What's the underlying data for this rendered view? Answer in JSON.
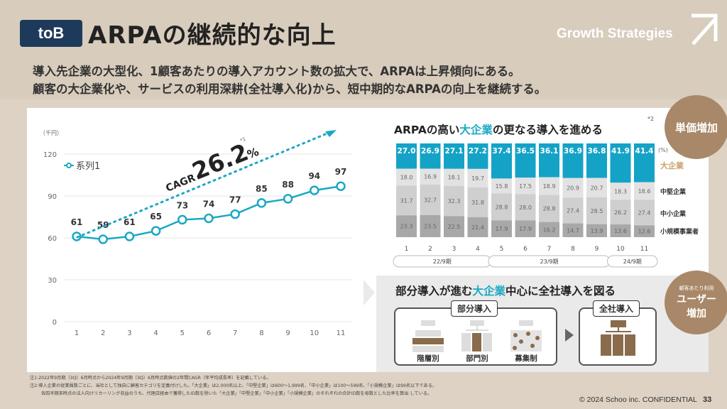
{
  "header": {
    "tag": "toB",
    "title": "ARPAの継続的な向上",
    "brand": "Growth Strategies",
    "lead_line1": "導入先企業の大型化、1顧客あたりの導入アカウント数の拡大で、ARPAは上昇傾向にある。",
    "lead_line2": "顧客の大企業化や、サービスの利用深耕(全社導入化)から、短中期的なARPAの向上を継続する。"
  },
  "chart_data": [
    {
      "type": "line",
      "unit_label": "（千円）",
      "legend": "系列1",
      "categories": [
        "1",
        "2",
        "3",
        "4",
        "5",
        "6",
        "7",
        "8",
        "9",
        "10",
        "11"
      ],
      "values": [
        61,
        59,
        61,
        65,
        73,
        74,
        77,
        85,
        88,
        94,
        97
      ],
      "y_ticks": [
        "0",
        "30",
        "60",
        "90",
        "120"
      ],
      "ylim": [
        0,
        120
      ],
      "cagr_label": "CAGR",
      "cagr_value": "26.2",
      "cagr_unit": "%",
      "cagr_note": "*1",
      "accent": "#1aa8c4"
    },
    {
      "type": "bar",
      "stacked": true,
      "unit_label": "(%)",
      "categories": [
        "1",
        "2",
        "3",
        "4",
        "5",
        "6",
        "7",
        "8",
        "9",
        "10",
        "11"
      ],
      "series": [
        {
          "name": "大企業",
          "values": [
            27.0,
            26.9,
            27.1,
            27.2,
            37.4,
            36.5,
            36.1,
            36.9,
            36.8,
            41.9,
            41.4
          ],
          "labels": [
            "27.0",
            "26.9",
            "27.1",
            "27.2",
            "37.4",
            "36.5",
            "36.1",
            "36.9",
            "36.8",
            "41.9",
            "41.4"
          ],
          "color": "#14a3c7"
        },
        {
          "name": "中堅企業",
          "values": [
            18.0,
            16.9,
            18.1,
            19.7,
            15.8,
            17.5,
            18.9,
            20.9,
            20.7,
            18.3,
            18.6
          ],
          "labels": [
            "18.0",
            "16.9",
            "18.1",
            "19.7",
            "15.8",
            "17.5",
            "18.9",
            "20.9",
            "20.7",
            "18.3",
            "18.6"
          ],
          "color": "#e2e2e2"
        },
        {
          "name": "中小企業",
          "values": [
            31.7,
            32.7,
            32.3,
            31.8,
            28.8,
            28.0,
            28.8,
            27.4,
            28.5,
            26.2,
            27.4
          ],
          "labels": [
            "31.7",
            "32.7",
            "32.3",
            "31.8",
            "28.8",
            "28.0",
            "28.8",
            "27.4",
            "28.5",
            "26.2",
            "27.4"
          ],
          "color": "#cfcfcf"
        },
        {
          "name": "小規模事業者",
          "values": [
            23.3,
            23.5,
            22.5,
            21.4,
            17.9,
            17.9,
            16.2,
            14.7,
            13.9,
            13.6,
            12.6
          ],
          "labels": [
            "23.3",
            "23.5",
            "22.5",
            "21.4",
            "17.9",
            "17.9",
            "16.2",
            "14.7",
            "13.9",
            "13.6",
            "12.6"
          ],
          "color": "#a8a8a8"
        }
      ],
      "periods": [
        "22/9期",
        "23/9期",
        "24/9期"
      ]
    }
  ],
  "right": {
    "section1_pre": "ARPAの高い",
    "section1_hl": "大企業",
    "section1_post": "の更なる導入を進める",
    "section1_note": "*2",
    "section2_pre": "部分導入が進む",
    "section2_hl": "大企業",
    "section2_post": "中心に全社導入を図る",
    "badge1": "単価増加",
    "badge2_small": "顧客あたり利用",
    "badge2_line1": "ユーザー",
    "badge2_line2": "増加",
    "group1_label": "部分導入",
    "group2_label": "全社導入",
    "icon1": "階層別",
    "icon2": "部門別",
    "icon3": "募集制"
  },
  "footer": {
    "note1": "注1:2022年9月期（3Q）6月時点から2024年9月期（3Q）6月時点数値の2年間CAGR（年平均成長率）を記載している。",
    "note2": "注2:導入企業の従業員数ごとに、当社として独自に顧客カテゴリを定義付けした。「大企業」は2,000名以上、「中堅企業」は600～1,999名、「中小企業」は100～599名、「小規模企業」は99名以下である。",
    "note3": "各四半期末時点の法人向けリカーリング収益のうち、代理店経由で獲得したID数を除いた「大企業」「中堅企業」「中小企業」「小規模企業」のそれぞれの合計ID数を母数とした比率を算出 している。",
    "copyright": "© 2024 Schoo inc. CONFIDENTIAL",
    "page": "33"
  }
}
